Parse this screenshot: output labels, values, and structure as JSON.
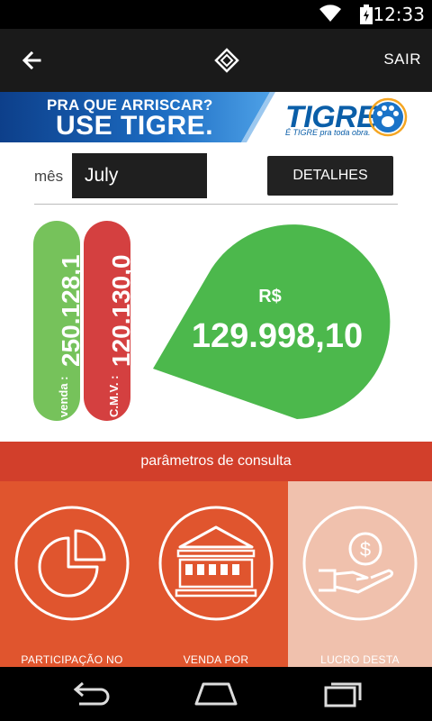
{
  "status_bar": {
    "time": "12:33",
    "icons": [
      "wifi-icon",
      "battery-icon"
    ]
  },
  "app_bar": {
    "back_icon": "arrow-left-icon",
    "logo_icon": "app-logo-icon",
    "sair_label": "SAIR"
  },
  "banner": {
    "line1": "PRA QUE ARRISCAR?",
    "line2": "USE TIGRE.",
    "brand": "TIGRE",
    "slogan": "É TIGRE pra toda obra.",
    "brand_color": "#0a5ea8"
  },
  "filter": {
    "mes_label": "mês",
    "month_value": "July",
    "detalhes_label": "DETALHES"
  },
  "indicators": {
    "venda": {
      "value": "250.128,1",
      "label": "venda :",
      "color": "#76c25b"
    },
    "cmv": {
      "value": "120.130,0",
      "label": "C.M.V. :",
      "color": "#d44040"
    }
  },
  "profit": {
    "currency": "R$",
    "value": "129.998,10",
    "color": "#4cb84c"
  },
  "params": {
    "header": "parâmetros de consulta",
    "tiles": [
      {
        "label": "PARTICIPAÇÃO NO",
        "icon": "pie-chart-icon",
        "color": "#e0552e"
      },
      {
        "label": "VENDA POR",
        "icon": "bank-building-icon",
        "color": "#e0552e"
      },
      {
        "label": "LUCRO DESTA",
        "icon": "money-hand-icon",
        "color": "#f0c1ad"
      }
    ]
  },
  "nav_bar": {
    "icons": [
      "back-nav-icon",
      "home-nav-icon",
      "recents-nav-icon"
    ]
  }
}
